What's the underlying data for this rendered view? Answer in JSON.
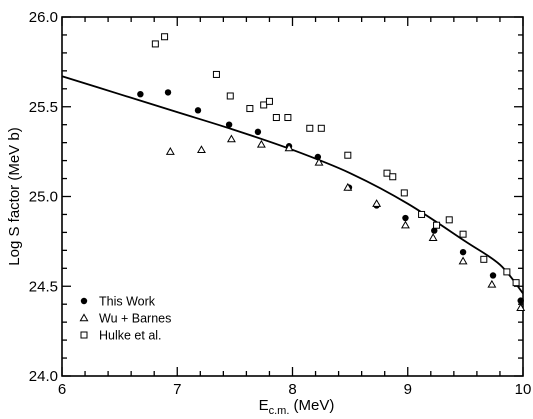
{
  "chart_data": {
    "type": "scatter",
    "title": "",
    "xlabel": {
      "main": "E",
      "sub": "c.m.",
      "unit": "(MeV)"
    },
    "ylabel": "Log S factor (MeV b)",
    "xlim": [
      6,
      10
    ],
    "ylim": [
      24.0,
      26.0
    ],
    "x_ticks": [
      6,
      7,
      8,
      9,
      10
    ],
    "x_tick_labels": [
      "6",
      "7",
      "8",
      "9",
      "10"
    ],
    "y_ticks": [
      24.0,
      24.5,
      25.0,
      25.5,
      26.0
    ],
    "y_tick_labels": [
      "24.0",
      "24.5",
      "25.0",
      "25.5",
      "26.0"
    ],
    "grid": false,
    "legend_position": "bottom-left",
    "series": [
      {
        "name": "This Work",
        "marker": "filled-circle",
        "points": [
          [
            6.68,
            25.57
          ],
          [
            6.92,
            25.58
          ],
          [
            7.18,
            25.48
          ],
          [
            7.45,
            25.4
          ],
          [
            7.7,
            25.36
          ],
          [
            7.97,
            25.28
          ],
          [
            8.22,
            25.22
          ],
          [
            8.49,
            25.05
          ],
          [
            8.73,
            24.95
          ],
          [
            8.98,
            24.88
          ],
          [
            9.23,
            24.81
          ],
          [
            9.48,
            24.69
          ],
          [
            9.74,
            24.56
          ],
          [
            9.98,
            24.42
          ]
        ]
      },
      {
        "name": "Wu + Barnes",
        "marker": "open-triangle",
        "points": [
          [
            6.94,
            25.25
          ],
          [
            7.21,
            25.26
          ],
          [
            7.47,
            25.32
          ],
          [
            7.73,
            25.29
          ],
          [
            7.97,
            25.27
          ],
          [
            8.23,
            25.19
          ],
          [
            8.48,
            25.05
          ],
          [
            8.73,
            24.96
          ],
          [
            8.98,
            24.84
          ],
          [
            9.22,
            24.77
          ],
          [
            9.48,
            24.64
          ],
          [
            9.73,
            24.51
          ],
          [
            9.98,
            24.38
          ]
        ]
      },
      {
        "name": "Hulke et al.",
        "marker": "open-square",
        "points": [
          [
            6.81,
            25.85
          ],
          [
            6.89,
            25.89
          ],
          [
            7.34,
            25.68
          ],
          [
            7.46,
            25.56
          ],
          [
            7.63,
            25.49
          ],
          [
            7.75,
            25.51
          ],
          [
            7.8,
            25.53
          ],
          [
            7.86,
            25.44
          ],
          [
            7.96,
            25.44
          ],
          [
            8.15,
            25.38
          ],
          [
            8.25,
            25.38
          ],
          [
            8.48,
            25.23
          ],
          [
            8.82,
            25.13
          ],
          [
            8.87,
            25.11
          ],
          [
            8.97,
            25.02
          ],
          [
            9.12,
            24.9
          ],
          [
            9.25,
            24.84
          ],
          [
            9.36,
            24.87
          ],
          [
            9.48,
            24.79
          ],
          [
            9.66,
            24.65
          ],
          [
            9.86,
            24.58
          ],
          [
            9.94,
            24.52
          ]
        ]
      }
    ],
    "fit_curve": {
      "points": [
        [
          6.0,
          25.67
        ],
        [
          6.5,
          25.57
        ],
        [
          7.0,
          25.47
        ],
        [
          7.5,
          25.37
        ],
        [
          8.0,
          25.26
        ],
        [
          8.5,
          25.13
        ],
        [
          9.0,
          24.96
        ],
        [
          9.5,
          24.75
        ],
        [
          9.8,
          24.62
        ],
        [
          10.0,
          24.46
        ]
      ]
    }
  }
}
